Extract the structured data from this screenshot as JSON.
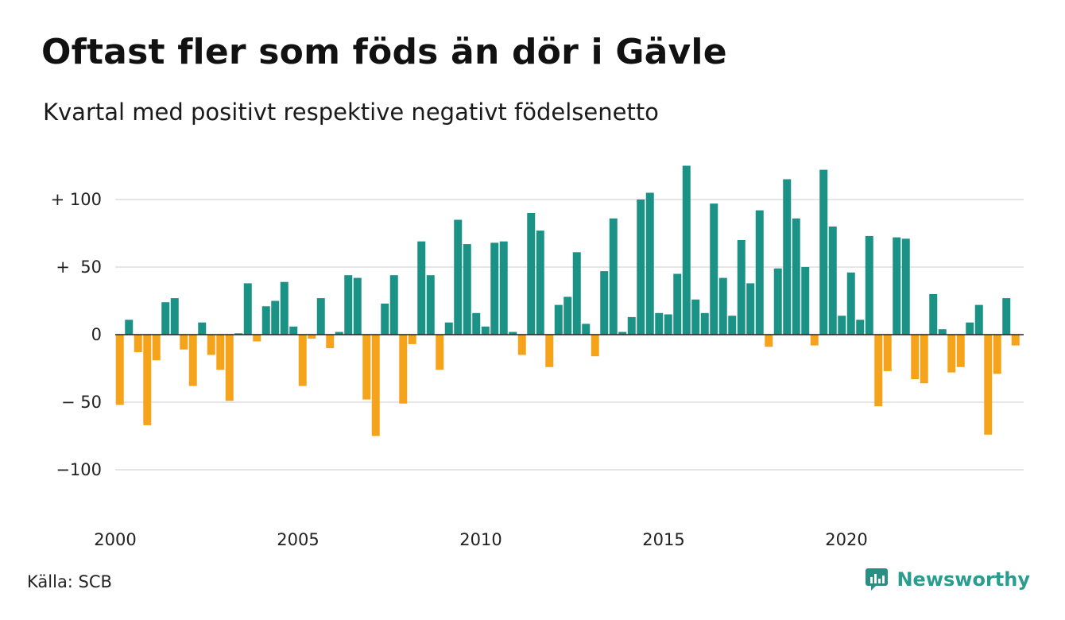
{
  "title": "Oftast fler som föds än dör i Gävle",
  "subtitle": "Kvartal med positivt respektive negativt födelsenetto",
  "source": "Källa: SCB",
  "brand": {
    "name": "Newsworthy",
    "icon": "newsworthy-logo-icon",
    "color": "#2a8f83"
  },
  "colors": {
    "positive": "#1a9285",
    "negative": "#f5a31a",
    "grid": "#dddddd",
    "axis": "#222222"
  },
  "chart_data": {
    "type": "bar",
    "xlabel": "",
    "ylabel": "",
    "x_range": [
      2000,
      2024.75
    ],
    "ylim": [
      -135,
      135
    ],
    "y_ticks": [
      100,
      50,
      0,
      -50,
      -100
    ],
    "y_tick_labels": [
      "+ 100",
      "+  50",
      "0",
      "− 50",
      "−100"
    ],
    "x_ticks": [
      2000,
      2005,
      2010,
      2015,
      2020
    ],
    "x_tick_labels": [
      "2000",
      "2005",
      "2010",
      "2015",
      "2020"
    ],
    "grid": true,
    "legend": "none",
    "start_quarter": "2000 Q1",
    "values": [
      -52,
      11,
      -13,
      -67,
      -19,
      24,
      27,
      -11,
      -38,
      9,
      -15,
      -26,
      -49,
      1,
      38,
      -5,
      21,
      25,
      39,
      6,
      -38,
      -3,
      27,
      -10,
      2,
      44,
      42,
      -48,
      -75,
      23,
      44,
      -51,
      -7,
      69,
      44,
      -26,
      9,
      85,
      67,
      16,
      6,
      68,
      69,
      2,
      -15,
      90,
      77,
      -24,
      22,
      28,
      61,
      8,
      -16,
      47,
      86,
      2,
      13,
      100,
      105,
      16,
      15,
      45,
      125,
      26,
      16,
      97,
      42,
      14,
      70,
      38,
      92,
      -9,
      49,
      115,
      86,
      50,
      -8,
      122,
      80,
      14,
      46,
      11,
      73,
      -53,
      -27,
      72,
      71,
      -33,
      -36,
      30,
      4,
      -28,
      -24,
      9,
      22,
      -74,
      -29,
      27,
      -8
    ]
  }
}
